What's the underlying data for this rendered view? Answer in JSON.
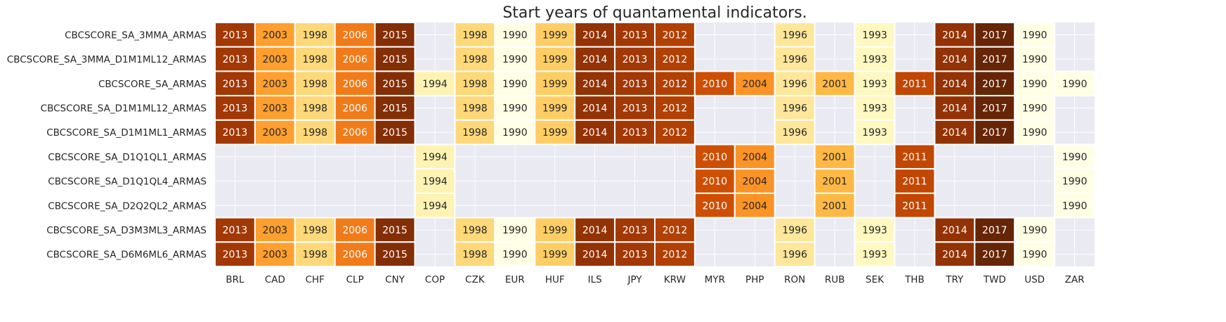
{
  "chart_data": {
    "type": "heatmap",
    "title": "Start years of quantamental indicators.",
    "xlabel": "",
    "ylabel": "",
    "x_categories": [
      "BRL",
      "CAD",
      "CHF",
      "CLP",
      "CNY",
      "COP",
      "CZK",
      "EUR",
      "HUF",
      "ILS",
      "JPY",
      "KRW",
      "MYR",
      "PHP",
      "RON",
      "RUB",
      "SEK",
      "THB",
      "TRY",
      "TWD",
      "USD",
      "ZAR"
    ],
    "y_categories": [
      "CBCSCORE_SA_3MMA_ARMAS",
      "CBCSCORE_SA_3MMA_D1M1ML12_ARMAS",
      "CBCSCORE_SA_ARMAS",
      "CBCSCORE_SA_D1M1ML12_ARMAS",
      "CBCSCORE_SA_D1M1ML1_ARMAS",
      "CBCSCORE_SA_D1Q1QL1_ARMAS",
      "CBCSCORE_SA_D1Q1QL4_ARMAS",
      "CBCSCORE_SA_D2Q2QL2_ARMAS",
      "CBCSCORE_SA_D3M3ML3_ARMAS",
      "CBCSCORE_SA_D6M6ML6_ARMAS"
    ],
    "values": [
      [
        2013,
        2003,
        1998,
        2006,
        2015,
        null,
        1998,
        1990,
        1999,
        2014,
        2013,
        2012,
        null,
        null,
        1996,
        null,
        1993,
        null,
        2014,
        2017,
        1990,
        null
      ],
      [
        2013,
        2003,
        1998,
        2006,
        2015,
        null,
        1998,
        1990,
        1999,
        2014,
        2013,
        2012,
        null,
        null,
        1996,
        null,
        1993,
        null,
        2014,
        2017,
        1990,
        null
      ],
      [
        2013,
        2003,
        1998,
        2006,
        2015,
        1994,
        1998,
        1990,
        1999,
        2014,
        2013,
        2012,
        2010,
        2004,
        1996,
        2001,
        1993,
        2011,
        2014,
        2017,
        1990,
        1990
      ],
      [
        2013,
        2003,
        1998,
        2006,
        2015,
        null,
        1998,
        1990,
        1999,
        2014,
        2013,
        2012,
        null,
        null,
        1996,
        null,
        1993,
        null,
        2014,
        2017,
        1990,
        null
      ],
      [
        2013,
        2003,
        1998,
        2006,
        2015,
        null,
        1998,
        1990,
        1999,
        2014,
        2013,
        2012,
        null,
        null,
        1996,
        null,
        1993,
        null,
        2014,
        2017,
        1990,
        null
      ],
      [
        null,
        null,
        null,
        null,
        null,
        1994,
        null,
        null,
        null,
        null,
        null,
        null,
        2010,
        2004,
        null,
        2001,
        null,
        2011,
        null,
        null,
        null,
        1990
      ],
      [
        null,
        null,
        null,
        null,
        null,
        1994,
        null,
        null,
        null,
        null,
        null,
        null,
        2010,
        2004,
        null,
        2001,
        null,
        2011,
        null,
        null,
        null,
        1990
      ],
      [
        null,
        null,
        null,
        null,
        null,
        1994,
        null,
        null,
        null,
        null,
        null,
        null,
        2010,
        2004,
        null,
        2001,
        null,
        2011,
        null,
        null,
        null,
        1990
      ],
      [
        2013,
        2003,
        1998,
        2006,
        2015,
        null,
        1998,
        1990,
        1999,
        2014,
        2013,
        2012,
        null,
        null,
        1996,
        null,
        1993,
        null,
        2014,
        2017,
        1990,
        null
      ],
      [
        2013,
        2003,
        1998,
        2006,
        2015,
        null,
        1998,
        1990,
        1999,
        2014,
        2013,
        2012,
        null,
        null,
        1996,
        null,
        1993,
        null,
        2014,
        2017,
        1990,
        null
      ]
    ],
    "value_range": [
      1990,
      2017
    ],
    "colormap": "YlOrBr",
    "colors": {
      "background": "#eaeaf2",
      "grid": "#ffffff",
      "cell_border": "#ffffff",
      "text_dark": "#262626",
      "text_light": "#ffffff"
    },
    "grid": true,
    "legend": "none"
  }
}
